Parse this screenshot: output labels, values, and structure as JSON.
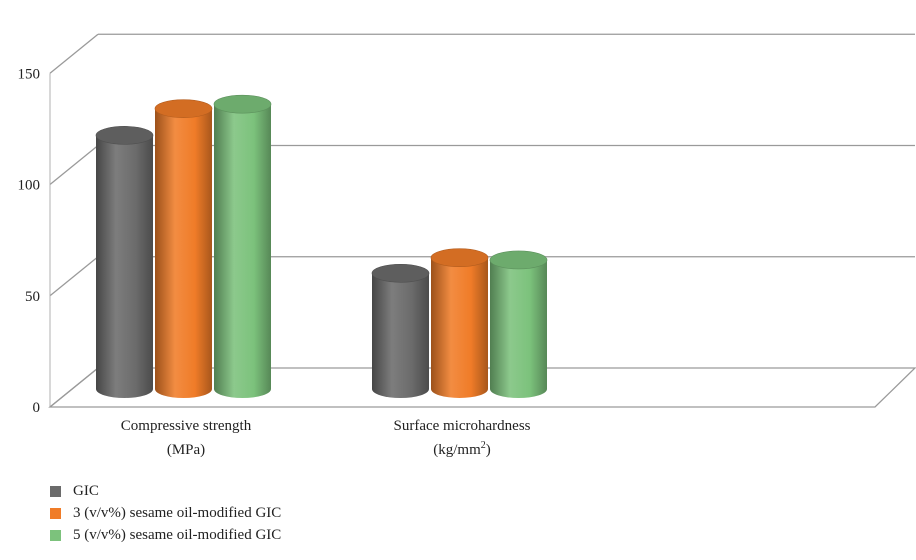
{
  "chart_data": {
    "type": "bar",
    "style": "3d-cylinder",
    "categories": [
      [
        "Compressive strength",
        "(MPa)"
      ],
      [
        "Surface microhardness",
        "(kg/mm",
        "2",
        ")"
      ]
    ],
    "series": [
      {
        "name": "GIC",
        "values": [
          114,
          52
        ],
        "color": "#6b6b6b"
      },
      {
        "name": "3 (v/v%) sesame oil-modified GIC",
        "values": [
          126,
          59
        ],
        "color": "#f07c28"
      },
      {
        "name": "5 (v/v%) sesame oil-modified GIC",
        "values": [
          128,
          58
        ],
        "color": "#7cc27c"
      }
    ],
    "yticks": [
      0,
      50,
      100,
      150
    ],
    "ylim": [
      0,
      160
    ],
    "grid": true,
    "legend_position": "bottom-left"
  }
}
